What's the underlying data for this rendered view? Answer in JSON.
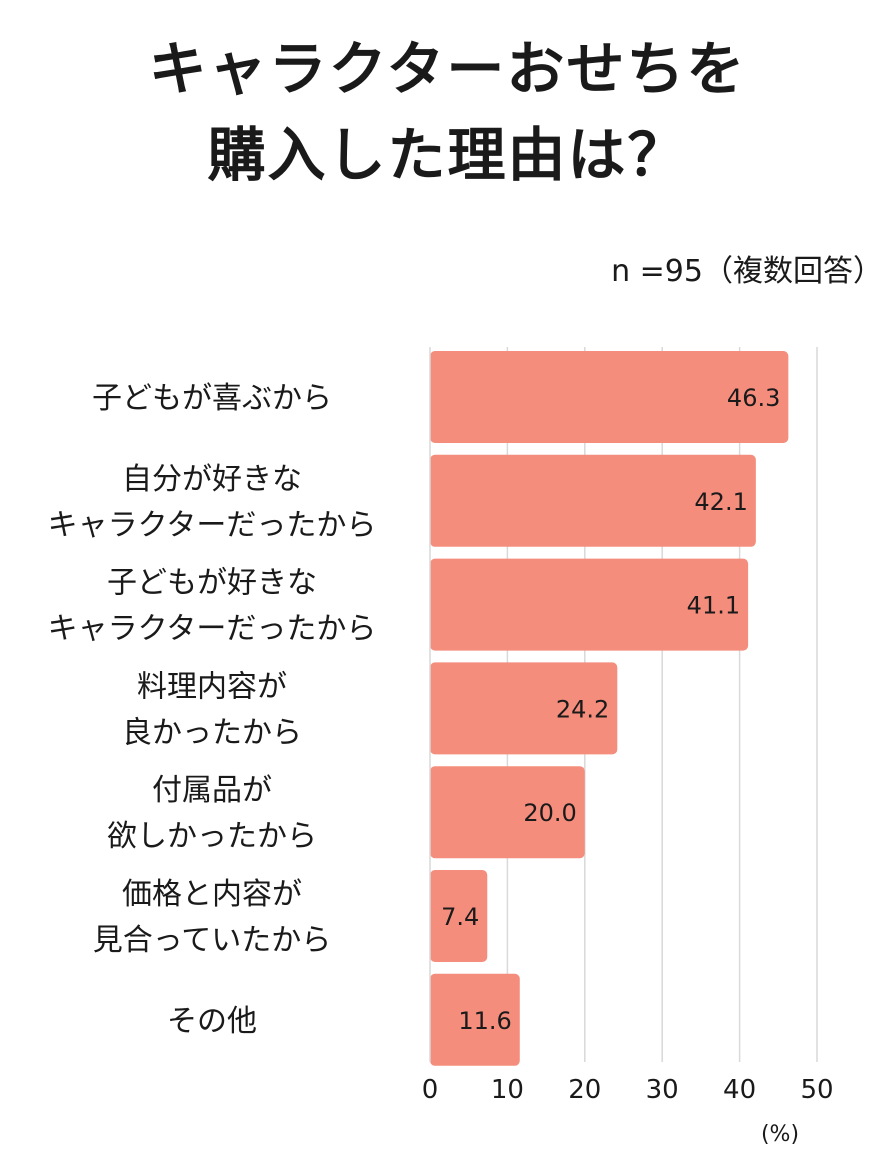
{
  "chart_data": {
    "type": "bar",
    "orientation": "horizontal",
    "title_lines": [
      "キャラクターおせちを",
      "購入した理由は？"
    ],
    "note": "n =95（複数回答）",
    "unit": "(%)",
    "categories": [
      [
        "子どもが喜ぶから"
      ],
      [
        "自分が好きな",
        "キャラクターだったから"
      ],
      [
        "子どもが好きな",
        "キャラクターだったから"
      ],
      [
        "料理内容が",
        "良かったから"
      ],
      [
        "付属品が",
        "欲しかったから"
      ],
      [
        "価格と内容が",
        "見合っていたから"
      ],
      [
        "その他"
      ]
    ],
    "values": [
      46.3,
      42.1,
      41.1,
      24.2,
      20.0,
      7.4,
      11.6
    ],
    "value_labels": [
      "46.3",
      "42.1",
      "41.1",
      "24.2",
      "20.0",
      "7.4",
      "11.6"
    ],
    "xlim": [
      0,
      50
    ],
    "xticks": [
      "0",
      "10",
      "20",
      "30",
      "40",
      "50"
    ],
    "grid": true,
    "bar_color": "#f58d7d"
  }
}
